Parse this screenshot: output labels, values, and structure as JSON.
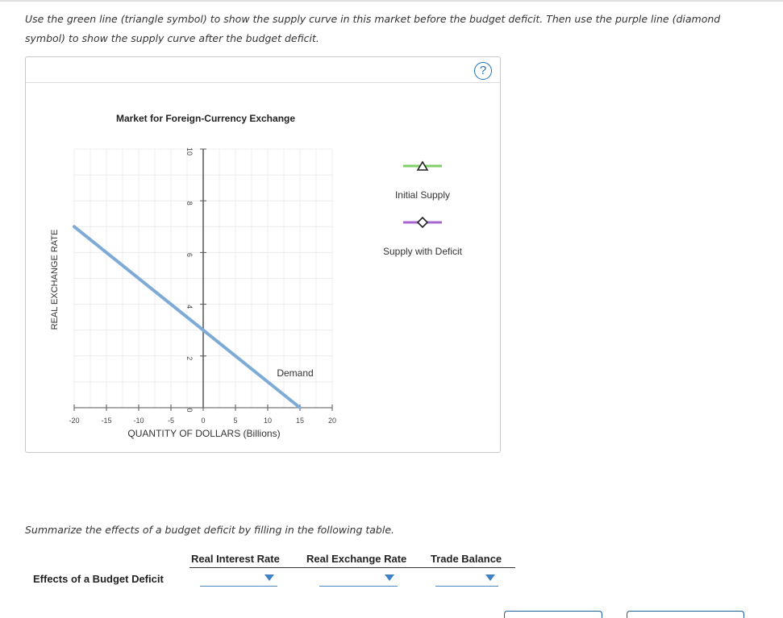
{
  "instructions": "Use the green line (triangle symbol) to show the supply curve in this market before the budget deficit. Then use the purple line (diamond symbol) to show the supply curve after the budget deficit.",
  "help": {
    "label": "?"
  },
  "chart_data": {
    "type": "line",
    "title": "Market for Foreign-Currency Exchange",
    "xlabel": "QUANTITY OF DOLLARS (Billions)",
    "ylabel": "REAL EXCHANGE RATE",
    "xlim": [
      -20,
      20
    ],
    "ylim": [
      0,
      10
    ],
    "x_ticks": [
      -20,
      -15,
      -10,
      -5,
      0,
      5,
      10,
      15,
      20
    ],
    "y_ticks": [
      0,
      2,
      4,
      6,
      8,
      10
    ],
    "grid": true,
    "series": [
      {
        "name": "Demand",
        "color": "#7eaad6",
        "points": [
          [
            -20,
            7
          ],
          [
            15,
            0
          ]
        ]
      }
    ],
    "tools": [
      {
        "label": "Initial Supply",
        "color": "#7fcf6a",
        "symbol": "triangle"
      },
      {
        "label": "Supply with Deficit",
        "color": "#a767cf",
        "symbol": "diamond"
      }
    ]
  },
  "table": {
    "prompt": "Summarize the effects of a budget deficit by filling in the following table.",
    "columns": [
      "Real Interest Rate",
      "Real Exchange Rate",
      "Trade Balance"
    ],
    "row_label": "Effects of a Budget Deficit",
    "values": [
      "",
      "",
      ""
    ]
  }
}
